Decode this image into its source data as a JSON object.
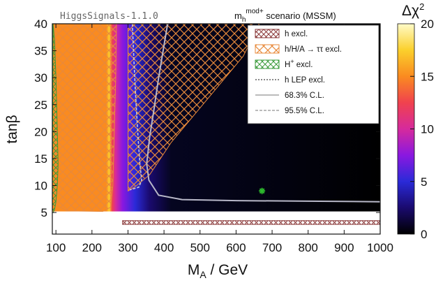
{
  "chart_data": {
    "type": "heatmap",
    "title": "m_h^{mod+} scenario (MSSM)",
    "title_main": "m",
    "title_sub": "h",
    "title_sup": "mod+",
    "title_rest": " scenario (MSSM)",
    "watermark": "HiggsSignals-1.1.0",
    "xlabel_main": "M",
    "xlabel_sub": "A",
    "xlabel_rest": " / GeV",
    "ylabel": "tanβ",
    "xlim": [
      90,
      1000
    ],
    "ylim": [
      1,
      40
    ],
    "xticks": [
      100,
      200,
      300,
      400,
      500,
      600,
      700,
      800,
      900,
      1000
    ],
    "yticks": [
      5,
      10,
      15,
      20,
      25,
      30,
      35,
      40
    ],
    "colorbar": {
      "label": "Δχ²",
      "label_main": "Δχ",
      "label_sup": "2",
      "range": [
        0,
        20
      ],
      "ticks": [
        0,
        5,
        10,
        15,
        20
      ],
      "colors": [
        "#000000",
        "#1a0a6e",
        "#2a2ad8",
        "#8a18e0",
        "#d62a9c",
        "#f0424e",
        "#fa8b20",
        "#fbd02c",
        "#fffbc8"
      ]
    },
    "legend": {
      "placement": "top-right",
      "entries": [
        {
          "label": "h excl.",
          "style": "hatch",
          "color": "#8b3a3a"
        },
        {
          "label": "h/H/A → ττ excl.",
          "style": "hatch",
          "color": "#e8893a"
        },
        {
          "label": "H excl.",
          "label_sup": "+",
          "style": "hatch",
          "color": "#3a9a3a"
        },
        {
          "label": "h LEP excl.",
          "style": "dotted",
          "color": "#888888"
        },
        {
          "label": "68.3% C.L.",
          "style": "solid",
          "color": "#bbbbbb"
        },
        {
          "label": "95.5% C.L.",
          "style": "dashed",
          "color": "#bbbbbb"
        }
      ]
    },
    "best_fit": {
      "x": 672,
      "y": 9,
      "color": "#2db82d"
    },
    "cl_68_contour": [
      [
        410,
        40
      ],
      [
        400,
        36
      ],
      [
        385,
        30
      ],
      [
        372,
        24
      ],
      [
        360,
        19
      ],
      [
        352,
        14
      ],
      [
        358,
        11
      ],
      [
        385,
        8.2
      ],
      [
        450,
        7.4
      ],
      [
        600,
        7.2
      ],
      [
        800,
        7.1
      ],
      [
        1000,
        7.0
      ]
    ],
    "cl_95_contour": [
      [
        312,
        40
      ],
      [
        316,
        34
      ],
      [
        321,
        27
      ],
      [
        327,
        20
      ],
      [
        333,
        14
      ],
      [
        338,
        11
      ],
      [
        330,
        9.7
      ],
      [
        305,
        9.2
      ]
    ],
    "tautau_region": [
      [
        98,
        6.5
      ],
      [
        130,
        5.3
      ],
      [
        230,
        5.2
      ],
      [
        252,
        6
      ],
      [
        258,
        10
      ],
      [
        262,
        20
      ],
      [
        266,
        30
      ],
      [
        268,
        40
      ],
      [
        98,
        40
      ]
    ],
    "tautau_upper_region": [
      [
        300,
        9
      ],
      [
        320,
        9.8
      ],
      [
        360,
        12
      ],
      [
        420,
        18
      ],
      [
        520,
        26
      ],
      [
        620,
        34
      ],
      [
        665,
        40
      ],
      [
        300,
        40
      ]
    ],
    "h_excl_band": [
      [
        285,
        2.8
      ],
      [
        1000,
        2.8
      ],
      [
        1000,
        3.5
      ],
      [
        285,
        3.5
      ]
    ],
    "hplus_region": [
      [
        92,
        40
      ],
      [
        96,
        37
      ],
      [
        100,
        30
      ],
      [
        104,
        20
      ],
      [
        106,
        14
      ],
      [
        104,
        10
      ],
      [
        100,
        7
      ],
      [
        96,
        5.5
      ],
      [
        92,
        5
      ],
      [
        90,
        5
      ]
    ]
  }
}
